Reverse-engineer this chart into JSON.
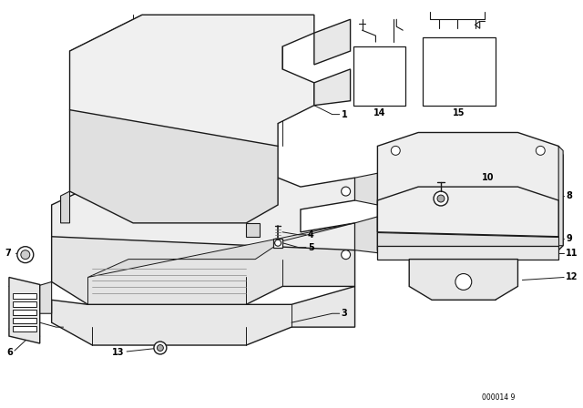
{
  "background_color": "#ffffff",
  "line_color": "#1a1a1a",
  "fig_width": 6.4,
  "fig_height": 4.48,
  "dpi": 100,
  "watermark": "000014 9"
}
